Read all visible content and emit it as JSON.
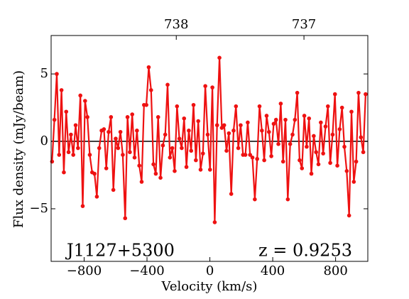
{
  "chart_data": {
    "type": "line",
    "xlabel": "Velocity (km/s)",
    "ylabel": "Flux density (mJy/beam)",
    "annotations": [
      "J1127+5300",
      "z = 0.9253"
    ],
    "color": "#ee1111",
    "hline": 0,
    "xlim": [
      -1010,
      1005
    ],
    "ylim": [
      -8.9,
      7.85
    ],
    "xticks": [
      {
        "value": -800,
        "label": "−800"
      },
      {
        "value": -400,
        "label": "−400"
      },
      0,
      400,
      800
    ],
    "yticks": [
      {
        "value": -5,
        "label": "−5"
      },
      0,
      5
    ],
    "x2lim": [
      738.98,
      736.5
    ],
    "x2ticks": [
      738,
      737
    ],
    "x": [
      -1004,
      -989,
      -974,
      -959,
      -944,
      -929,
      -914,
      -899,
      -884,
      -869,
      -854,
      -839,
      -824,
      -809,
      -794,
      -779,
      -764,
      -749,
      -734,
      -719,
      -704,
      -689,
      -674,
      -659,
      -644,
      -629,
      -614,
      -599,
      -584,
      -569,
      -554,
      -539,
      -524,
      -509,
      -494,
      -479,
      -464,
      -449,
      -434,
      -419,
      -404,
      -389,
      -374,
      -359,
      -344,
      -329,
      -314,
      -299,
      -284,
      -269,
      -254,
      -239,
      -224,
      -209,
      -194,
      -179,
      -164,
      -149,
      -134,
      -119,
      -104,
      -89,
      -74,
      -59,
      -44,
      -29,
      -14,
      1,
      16,
      31,
      46,
      61,
      76,
      91,
      106,
      121,
      136,
      151,
      166,
      181,
      196,
      211,
      226,
      241,
      256,
      271,
      286,
      301,
      316,
      331,
      346,
      361,
      376,
      391,
      406,
      421,
      436,
      451,
      466,
      481,
      496,
      511,
      526,
      541,
      556,
      571,
      586,
      601,
      616,
      631,
      646,
      661,
      676,
      691,
      706,
      721,
      736,
      751,
      766,
      781,
      796,
      811,
      826,
      841,
      856,
      871,
      886,
      901,
      916,
      931,
      946,
      961,
      976,
      991
    ],
    "values": [
      -1.5,
      1.6,
      5.0,
      -1.0,
      3.8,
      -2.3,
      2.2,
      -0.8,
      0.5,
      -1.0,
      1.2,
      -0.5,
      3.4,
      -4.8,
      3.0,
      1.8,
      -1.0,
      -2.3,
      -2.4,
      -4.1,
      -0.5,
      0.8,
      0.9,
      -2.0,
      0.7,
      1.8,
      -3.6,
      0.2,
      -0.5,
      0.7,
      -1.0,
      -5.7,
      1.8,
      -0.8,
      2.0,
      -1.2,
      0.8,
      -1.8,
      -3.0,
      2.7,
      2.7,
      5.5,
      3.8,
      -1.7,
      -2.4,
      1.8,
      -2.7,
      -0.3,
      0.5,
      4.2,
      -1.2,
      -0.5,
      -2.2,
      2.6,
      0.2,
      -0.5,
      1.7,
      -1.9,
      0.8,
      -0.7,
      2.7,
      -1.4,
      1.5,
      -2.1,
      -0.9,
      4.1,
      0.5,
      -2.1,
      4.0,
      -6.0,
      1.2,
      6.2,
      1.0,
      1.2,
      -0.7,
      0.6,
      -3.9,
      0.8,
      2.6,
      -0.5,
      1.2,
      -1.0,
      -1.0,
      1.4,
      -1.0,
      -1.2,
      -4.3,
      -1.3,
      2.6,
      0.8,
      -1.4,
      1.9,
      0.7,
      -1.1,
      1.3,
      1.6,
      -0.2,
      2.8,
      -1.5,
      1.6,
      -4.3,
      -0.2,
      0.5,
      1.6,
      3.6,
      -1.4,
      -2.0,
      1.9,
      -0.4,
      1.7,
      -2.4,
      0.4,
      -0.8,
      -1.7,
      1.4,
      -0.9,
      1.1,
      2.6,
      -1.6,
      0.5,
      3.5,
      -1.8,
      0.9,
      2.5,
      -0.4,
      -2.2,
      -5.5,
      2.2,
      -3.0,
      -1.5,
      3.6,
      0.3,
      -0.8,
      3.5
    ]
  }
}
